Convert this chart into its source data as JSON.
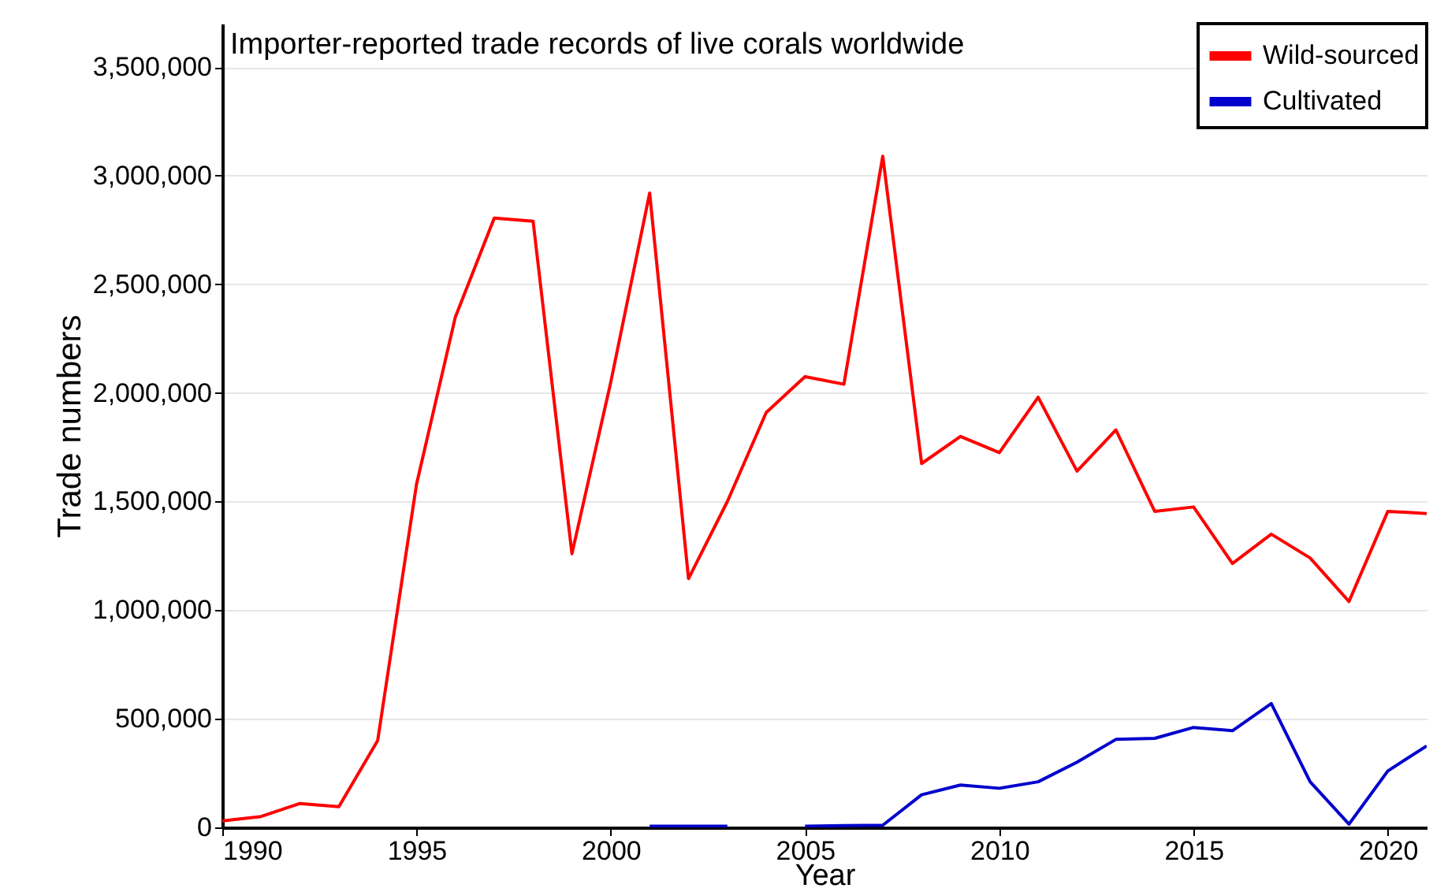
{
  "chart_data": {
    "type": "line",
    "title": "Importer-reported trade records of live corals worldwide",
    "xlabel": "Year",
    "ylabel": "Trade numbers",
    "x": [
      1990,
      1991,
      1992,
      1993,
      1994,
      1995,
      1996,
      1997,
      1998,
      1999,
      2000,
      2001,
      2002,
      2003,
      2004,
      2005,
      2006,
      2007,
      2008,
      2009,
      2010,
      2011,
      2012,
      2013,
      2014,
      2015,
      2016,
      2017,
      2018,
      2019,
      2020,
      2021
    ],
    "series": [
      {
        "name": "Wild-sourced",
        "color": "#ff0000",
        "values": [
          30000,
          50000,
          110000,
          95000,
          400000,
          1580000,
          2350000,
          2805000,
          2790000,
          1260000,
          2050000,
          2920000,
          1145000,
          1500000,
          1910000,
          2075000,
          2040000,
          3090000,
          1675000,
          1800000,
          1725000,
          1980000,
          1640000,
          1830000,
          1455000,
          1475000,
          1215000,
          1350000,
          1240000,
          1040000,
          1455000,
          1445000
        ]
      },
      {
        "name": "Cultivated",
        "color": "#0000cc",
        "values": [
          null,
          null,
          null,
          null,
          null,
          null,
          null,
          null,
          null,
          null,
          null,
          5000,
          5000,
          5000,
          null,
          5000,
          8000,
          10000,
          150000,
          195000,
          180000,
          210000,
          300000,
          405000,
          410000,
          460000,
          445000,
          570000,
          210000,
          15000,
          260000,
          375000
        ]
      }
    ],
    "xlim": [
      1990,
      2021
    ],
    "xticks": [
      1990,
      1995,
      2000,
      2005,
      2010,
      2015,
      2020
    ],
    "ylim": [
      0,
      3700000
    ],
    "yticks": [
      0,
      {
        "value": 500000,
        "label": "500,000"
      },
      {
        "value": 1000000,
        "label": "1,000,000"
      },
      {
        "value": 1500000,
        "label": "1,500,000"
      },
      {
        "value": 2000000,
        "label": "2,000,000"
      },
      {
        "value": 2500000,
        "label": "2,500,000"
      },
      {
        "value": 3000000,
        "label": "3,000,000"
      },
      {
        "value": 3500000,
        "label": "3,500,000"
      }
    ],
    "grid": "y",
    "legend": "top right"
  }
}
